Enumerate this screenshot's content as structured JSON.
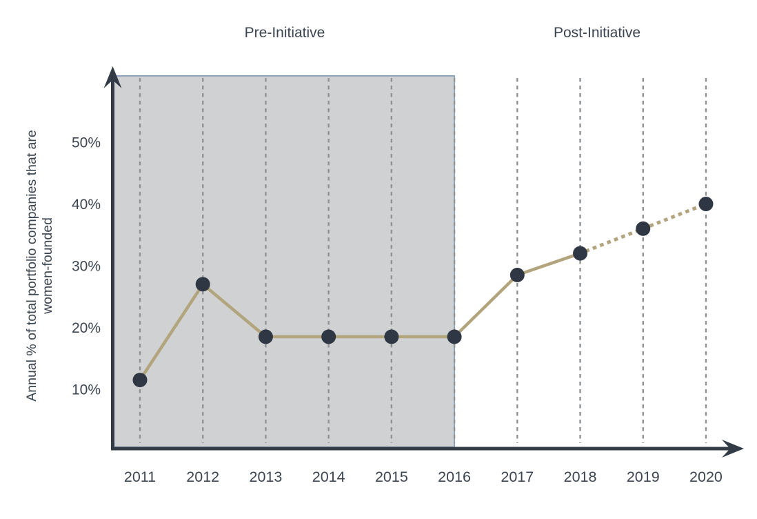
{
  "chart_data": {
    "type": "line",
    "title": "",
    "x": [
      "2011",
      "2012",
      "2013",
      "2014",
      "2015",
      "2016",
      "2017",
      "2018",
      "2019",
      "2020"
    ],
    "series": [
      {
        "name": "Annual % of total portfolio companies that are women-founded",
        "values": [
          11.5,
          27,
          18.5,
          18.5,
          18.5,
          18.5,
          28.5,
          32,
          36,
          40
        ]
      }
    ],
    "ylabel_lines": [
      "Annual % of total portfolio companies that are",
      "women-founded"
    ],
    "xlabel": "",
    "y_ticks": [
      {
        "value": 10,
        "label": "10%"
      },
      {
        "value": 20,
        "label": "20%"
      },
      {
        "value": 30,
        "label": "30%"
      },
      {
        "value": 40,
        "label": "40%"
      },
      {
        "value": 50,
        "label": "50%"
      }
    ],
    "ylim": [
      0,
      57
    ],
    "grid": "vertical-dashed",
    "legend": "none",
    "regions": [
      {
        "label": "Pre-Initiative",
        "x_start": "2011",
        "x_end": "2016",
        "shaded": true
      },
      {
        "label": "Post-Initiative",
        "x_start": "2017",
        "x_end": "2020",
        "shaded": false
      }
    ],
    "line_segments": [
      {
        "from": "2011",
        "to": "2018",
        "style": "solid"
      },
      {
        "from": "2018",
        "to": "2020",
        "style": "dotted"
      }
    ],
    "colors": {
      "line": "#b2a47c",
      "point": "#2e3743",
      "axis": "#333c46",
      "text": "#3d4650",
      "region_fill": "#d0d1d2",
      "region_border": "#8ea4ba",
      "gridline": "#8f9396"
    }
  }
}
